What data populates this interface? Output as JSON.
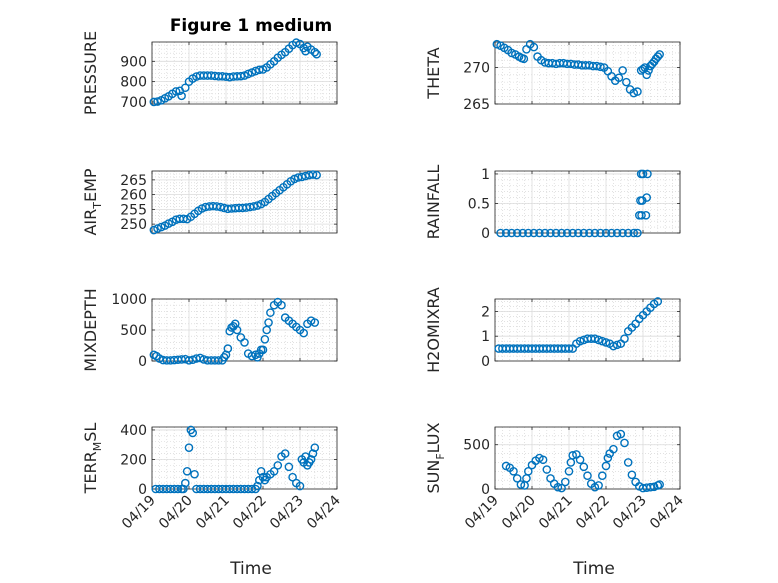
{
  "figure": {
    "title": "Figure 1 medium",
    "x_axis_label": "Time",
    "x_tick_labels": [
      "04/19",
      "04/20",
      "04/21",
      "04/22",
      "04/23",
      "04/24"
    ],
    "marker_color": "#0072BD"
  },
  "chart_data": [
    {
      "type": "scatter",
      "ylabel": "PRESSURE",
      "ylabel_sub": "",
      "ylabel_tail": "",
      "ylim": [
        690,
        995
      ],
      "yticks": [
        700,
        800,
        900
      ],
      "xlim": [
        0,
        5
      ],
      "x": [
        0.05,
        0.15,
        0.25,
        0.35,
        0.45,
        0.55,
        0.65,
        0.75,
        0.8,
        0.9,
        1.0,
        1.1,
        1.2,
        1.3,
        1.4,
        1.5,
        1.6,
        1.7,
        1.8,
        1.9,
        2.0,
        2.1,
        2.2,
        2.3,
        2.4,
        2.5,
        2.6,
        2.7,
        2.8,
        2.9,
        3.0,
        3.1,
        3.2,
        3.3,
        3.4,
        3.5,
        3.6,
        3.7,
        3.8,
        3.9,
        4.0,
        4.1,
        4.15,
        4.2,
        4.3,
        4.4,
        4.45
      ],
      "y": [
        700,
        702,
        708,
        718,
        728,
        740,
        752,
        755,
        730,
        770,
        800,
        815,
        825,
        830,
        830,
        830,
        830,
        828,
        826,
        826,
        824,
        822,
        825,
        826,
        827,
        830,
        838,
        845,
        852,
        858,
        860,
        870,
        885,
        900,
        918,
        932,
        945,
        962,
        980,
        992,
        985,
        965,
        950,
        972,
        958,
        945,
        935
      ]
    },
    {
      "type": "scatter",
      "ylabel": "THETA",
      "ylabel_sub": "",
      "ylabel_tail": "",
      "ylim": [
        265,
        273.5
      ],
      "yticks": [
        265,
        270
      ],
      "xlim": [
        0,
        5
      ],
      "x": [
        0.05,
        0.15,
        0.25,
        0.35,
        0.45,
        0.55,
        0.65,
        0.72,
        0.78,
        0.85,
        0.95,
        1.05,
        1.15,
        1.25,
        1.35,
        1.45,
        1.55,
        1.65,
        1.75,
        1.85,
        1.95,
        2.05,
        2.15,
        2.25,
        2.35,
        2.45,
        2.55,
        2.65,
        2.75,
        2.85,
        2.95,
        3.05,
        3.15,
        3.25,
        3.35,
        3.45,
        3.55,
        3.65,
        3.75,
        3.85,
        3.95,
        4.0,
        4.05,
        4.1,
        4.15,
        4.2,
        4.25,
        4.3,
        4.35,
        4.4,
        4.45
      ],
      "y": [
        273.2,
        273.0,
        272.7,
        272.4,
        272.0,
        271.8,
        271.5,
        271.3,
        271.2,
        272.5,
        273.2,
        272.8,
        271.5,
        271.0,
        270.7,
        270.6,
        270.6,
        270.5,
        270.6,
        270.6,
        270.5,
        270.5,
        270.4,
        270.4,
        270.3,
        270.3,
        270.3,
        270.2,
        270.2,
        270.1,
        270.0,
        269.5,
        268.8,
        268.2,
        268.6,
        269.6,
        268.0,
        267.0,
        266.5,
        266.7,
        269.6,
        269.8,
        270.0,
        269.0,
        269.6,
        270.2,
        270.5,
        270.8,
        271.2,
        271.5,
        271.8
      ]
    },
    {
      "type": "scatter",
      "ylabel": "AIR",
      "ylabel_sub": "T",
      "ylabel_tail": "EMP",
      "ylim": [
        247,
        268
      ],
      "yticks": [
        250,
        255,
        260,
        265
      ],
      "xlim": [
        0,
        5
      ],
      "x": [
        0.05,
        0.15,
        0.25,
        0.35,
        0.45,
        0.55,
        0.65,
        0.75,
        0.85,
        0.95,
        1.05,
        1.15,
        1.25,
        1.35,
        1.45,
        1.55,
        1.65,
        1.75,
        1.85,
        1.95,
        2.05,
        2.15,
        2.25,
        2.35,
        2.45,
        2.55,
        2.65,
        2.75,
        2.85,
        2.95,
        3.05,
        3.15,
        3.25,
        3.35,
        3.45,
        3.55,
        3.65,
        3.75,
        3.85,
        3.95,
        4.05,
        4.15,
        4.25,
        4.35,
        4.45
      ],
      "y": [
        248,
        248.5,
        249,
        249.5,
        250.2,
        250.8,
        251.5,
        251.8,
        251.8,
        251.7,
        252.5,
        253.5,
        254.5,
        255.3,
        255.8,
        256.0,
        256.1,
        256.0,
        255.8,
        255.5,
        255.2,
        255.3,
        255.4,
        255.5,
        255.5,
        255.6,
        255.8,
        256.0,
        256.3,
        256.8,
        257.5,
        258.5,
        259.5,
        260.5,
        261.5,
        262.5,
        263.5,
        264.5,
        265.3,
        265.8,
        266.0,
        266.3,
        266.6,
        266.8,
        266.6
      ]
    },
    {
      "type": "scatter",
      "ylabel": "RAINFALL",
      "ylabel_sub": "",
      "ylabel_tail": "",
      "ylim": [
        0,
        1.05
      ],
      "yticks": [
        0,
        0.5,
        1
      ],
      "xlim": [
        0,
        5
      ],
      "x": [
        0.15,
        0.3,
        0.45,
        0.6,
        0.75,
        0.9,
        1.05,
        1.2,
        1.35,
        1.5,
        1.65,
        1.8,
        1.95,
        2.1,
        2.25,
        2.4,
        2.55,
        2.7,
        2.85,
        3.0,
        3.15,
        3.3,
        3.45,
        3.6,
        3.75,
        3.85,
        3.9,
        3.93,
        3.95,
        3.96,
        3.98,
        4.0,
        4.08,
        4.1,
        4.12
      ],
      "y": [
        0,
        0,
        0,
        0,
        0,
        0,
        0,
        0,
        0,
        0,
        0,
        0,
        0,
        0,
        0,
        0,
        0,
        0,
        0,
        0,
        0,
        0,
        0,
        0,
        0,
        0,
        0.3,
        0.55,
        1.0,
        0.3,
        0.55,
        1.0,
        0.3,
        0.6,
        1.0
      ]
    },
    {
      "type": "scatter",
      "ylabel": "MIXDEPTH",
      "ylabel_sub": "",
      "ylabel_tail": "",
      "ylim": [
        0,
        1000
      ],
      "yticks": [
        0,
        500,
        1000
      ],
      "xlim": [
        0,
        5
      ],
      "x": [
        0.05,
        0.12,
        0.2,
        0.3,
        0.4,
        0.5,
        0.6,
        0.7,
        0.8,
        0.9,
        1.0,
        1.1,
        1.2,
        1.3,
        1.4,
        1.5,
        1.6,
        1.7,
        1.8,
        1.9,
        1.95,
        2.0,
        2.05,
        2.1,
        2.15,
        2.2,
        2.25,
        2.3,
        2.4,
        2.5,
        2.6,
        2.7,
        2.8,
        2.85,
        2.9,
        2.95,
        3.0,
        3.05,
        3.1,
        3.15,
        3.2,
        3.3,
        3.4,
        3.5,
        3.6,
        3.7,
        3.8,
        3.9,
        4.0,
        4.1,
        4.2,
        4.3,
        4.4
      ],
      "y": [
        100,
        80,
        40,
        15,
        10,
        10,
        15,
        20,
        25,
        30,
        10,
        20,
        40,
        50,
        25,
        10,
        10,
        10,
        10,
        10,
        60,
        100,
        200,
        480,
        540,
        560,
        600,
        500,
        380,
        300,
        120,
        80,
        100,
        60,
        120,
        180,
        180,
        350,
        500,
        620,
        780,
        900,
        950,
        900,
        700,
        650,
        600,
        550,
        500,
        450,
        600,
        650,
        620
      ]
    },
    {
      "type": "scatter",
      "ylabel": "H2OMIXRA",
      "ylabel_sub": "",
      "ylabel_tail": "",
      "ylim": [
        0,
        2.5
      ],
      "yticks": [
        0,
        1,
        2
      ],
      "xlim": [
        0,
        5
      ],
      "x": [
        0.1,
        0.2,
        0.3,
        0.4,
        0.5,
        0.6,
        0.7,
        0.8,
        0.9,
        1.0,
        1.1,
        1.2,
        1.3,
        1.4,
        1.5,
        1.6,
        1.7,
        1.8,
        1.9,
        2.0,
        2.1,
        2.2,
        2.3,
        2.4,
        2.5,
        2.6,
        2.7,
        2.8,
        2.9,
        3.0,
        3.1,
        3.2,
        3.3,
        3.4,
        3.5,
        3.6,
        3.7,
        3.8,
        3.9,
        4.0,
        4.1,
        4.2,
        4.3,
        4.4
      ],
      "y": [
        0.5,
        0.5,
        0.5,
        0.5,
        0.5,
        0.5,
        0.5,
        0.5,
        0.5,
        0.5,
        0.5,
        0.5,
        0.5,
        0.5,
        0.5,
        0.5,
        0.5,
        0.5,
        0.5,
        0.5,
        0.5,
        0.7,
        0.8,
        0.85,
        0.9,
        0.9,
        0.9,
        0.85,
        0.8,
        0.75,
        0.7,
        0.6,
        0.65,
        0.7,
        0.9,
        1.2,
        1.35,
        1.5,
        1.7,
        1.85,
        2.0,
        2.15,
        2.3,
        2.4
      ]
    },
    {
      "type": "scatter",
      "ylabel": "TERR",
      "ylabel_sub": "M",
      "ylabel_tail": "SL",
      "ylim": [
        0,
        420
      ],
      "yticks": [
        0,
        200,
        400
      ],
      "xlim": [
        0,
        5
      ],
      "x": [
        0.1,
        0.2,
        0.3,
        0.4,
        0.5,
        0.6,
        0.7,
        0.8,
        0.85,
        0.9,
        0.95,
        1.0,
        1.05,
        1.1,
        1.15,
        1.2,
        1.3,
        1.4,
        1.5,
        1.6,
        1.7,
        1.8,
        1.9,
        2.0,
        2.1,
        2.2,
        2.3,
        2.4,
        2.5,
        2.6,
        2.7,
        2.8,
        2.85,
        2.9,
        2.95,
        3.0,
        3.05,
        3.1,
        3.2,
        3.3,
        3.4,
        3.5,
        3.6,
        3.7,
        3.8,
        3.9,
        4.0,
        4.05,
        4.1,
        4.15,
        4.2,
        4.25,
        4.3,
        4.35,
        4.4
      ],
      "y": [
        0,
        0,
        0,
        0,
        0,
        0,
        0,
        0,
        0,
        40,
        120,
        280,
        400,
        380,
        100,
        0,
        0,
        0,
        0,
        0,
        0,
        0,
        0,
        0,
        0,
        0,
        0,
        0,
        0,
        0,
        0,
        0,
        20,
        60,
        120,
        80,
        60,
        80,
        100,
        120,
        160,
        220,
        240,
        150,
        80,
        40,
        20,
        200,
        180,
        220,
        160,
        180,
        200,
        240,
        280
      ]
    },
    {
      "type": "scatter",
      "ylabel": "SUN",
      "ylabel_sub": "F",
      "ylabel_tail": "LUX",
      "ylim": [
        0,
        700
      ],
      "yticks": [
        0,
        500
      ],
      "xlim": [
        0,
        5
      ],
      "x": [
        0.3,
        0.4,
        0.5,
        0.6,
        0.7,
        0.8,
        0.85,
        0.9,
        1.0,
        1.1,
        1.2,
        1.3,
        1.4,
        1.5,
        1.6,
        1.7,
        1.8,
        1.9,
        2.0,
        2.05,
        2.1,
        2.2,
        2.3,
        2.4,
        2.5,
        2.6,
        2.7,
        2.8,
        2.9,
        3.0,
        3.05,
        3.1,
        3.2,
        3.3,
        3.4,
        3.5,
        3.6,
        3.7,
        3.8,
        3.9,
        4.0,
        4.1,
        4.2,
        4.3,
        4.4,
        4.45
      ],
      "y": [
        260,
        240,
        200,
        120,
        50,
        40,
        120,
        200,
        270,
        320,
        350,
        330,
        220,
        120,
        60,
        20,
        10,
        80,
        200,
        300,
        380,
        390,
        330,
        250,
        150,
        60,
        20,
        40,
        150,
        260,
        350,
        400,
        450,
        600,
        620,
        520,
        300,
        160,
        80,
        30,
        10,
        15,
        20,
        25,
        40,
        50
      ]
    }
  ]
}
